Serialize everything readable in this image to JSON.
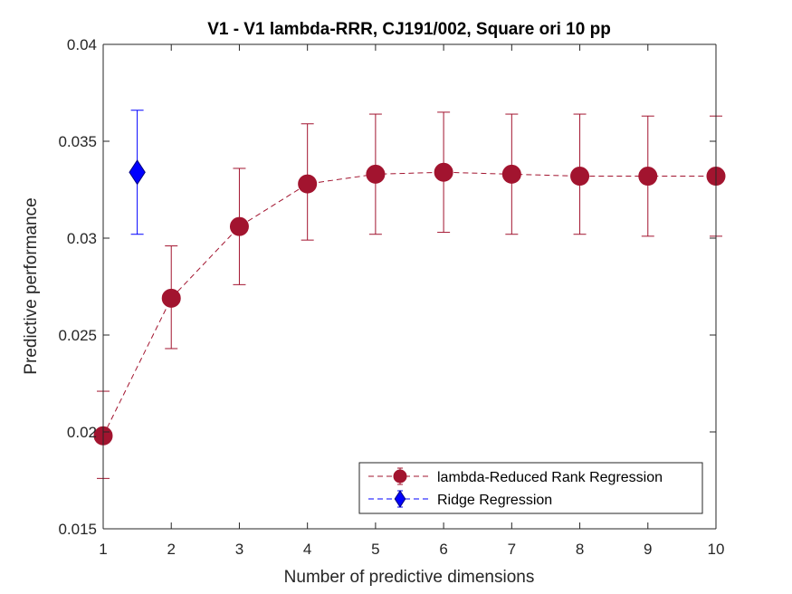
{
  "chart_data": {
    "type": "line",
    "title": "V1 - V1 lambda-RRR, CJ191/002, Square ori 10 pp",
    "xlabel": "Number of predictive dimensions",
    "ylabel": "Predictive performance",
    "xlim": [
      1,
      10
    ],
    "ylim": [
      0.015,
      0.04
    ],
    "xticks": [
      1,
      2,
      3,
      4,
      5,
      6,
      7,
      8,
      9,
      10
    ],
    "xtick_labels": [
      "1",
      "2",
      "3",
      "4",
      "5",
      "6",
      "7",
      "8",
      "9",
      "10"
    ],
    "yticks": [
      0.015,
      0.02,
      0.025,
      0.03,
      0.035,
      0.04
    ],
    "ytick_labels": [
      "0.015",
      "0.02",
      "0.025",
      "0.03",
      "0.035",
      "0.04"
    ],
    "grid": false,
    "legend_position": "bottom-right",
    "series": [
      {
        "name": "lambda-Reduced Rank Regression",
        "color": "#a2142f",
        "marker": "circle",
        "line_style": "dashed",
        "x": [
          1,
          2,
          3,
          4,
          5,
          6,
          7,
          8,
          9,
          10
        ],
        "y": [
          0.0198,
          0.0269,
          0.0306,
          0.0328,
          0.0333,
          0.0334,
          0.0333,
          0.0332,
          0.0332,
          0.0332
        ],
        "err_low": [
          0.0176,
          0.0243,
          0.0276,
          0.0299,
          0.0302,
          0.0303,
          0.0302,
          0.0302,
          0.0301,
          0.0301
        ],
        "err_high": [
          0.0221,
          0.0296,
          0.0336,
          0.0359,
          0.0364,
          0.0365,
          0.0364,
          0.0364,
          0.0363,
          0.0363
        ]
      },
      {
        "name": "Ridge Regression",
        "color": "#0000ff",
        "marker": "diamond",
        "line_style": "dashed",
        "x": [
          1.5
        ],
        "y": [
          0.0334
        ],
        "err_low": [
          0.0302
        ],
        "err_high": [
          0.0366
        ]
      }
    ]
  }
}
